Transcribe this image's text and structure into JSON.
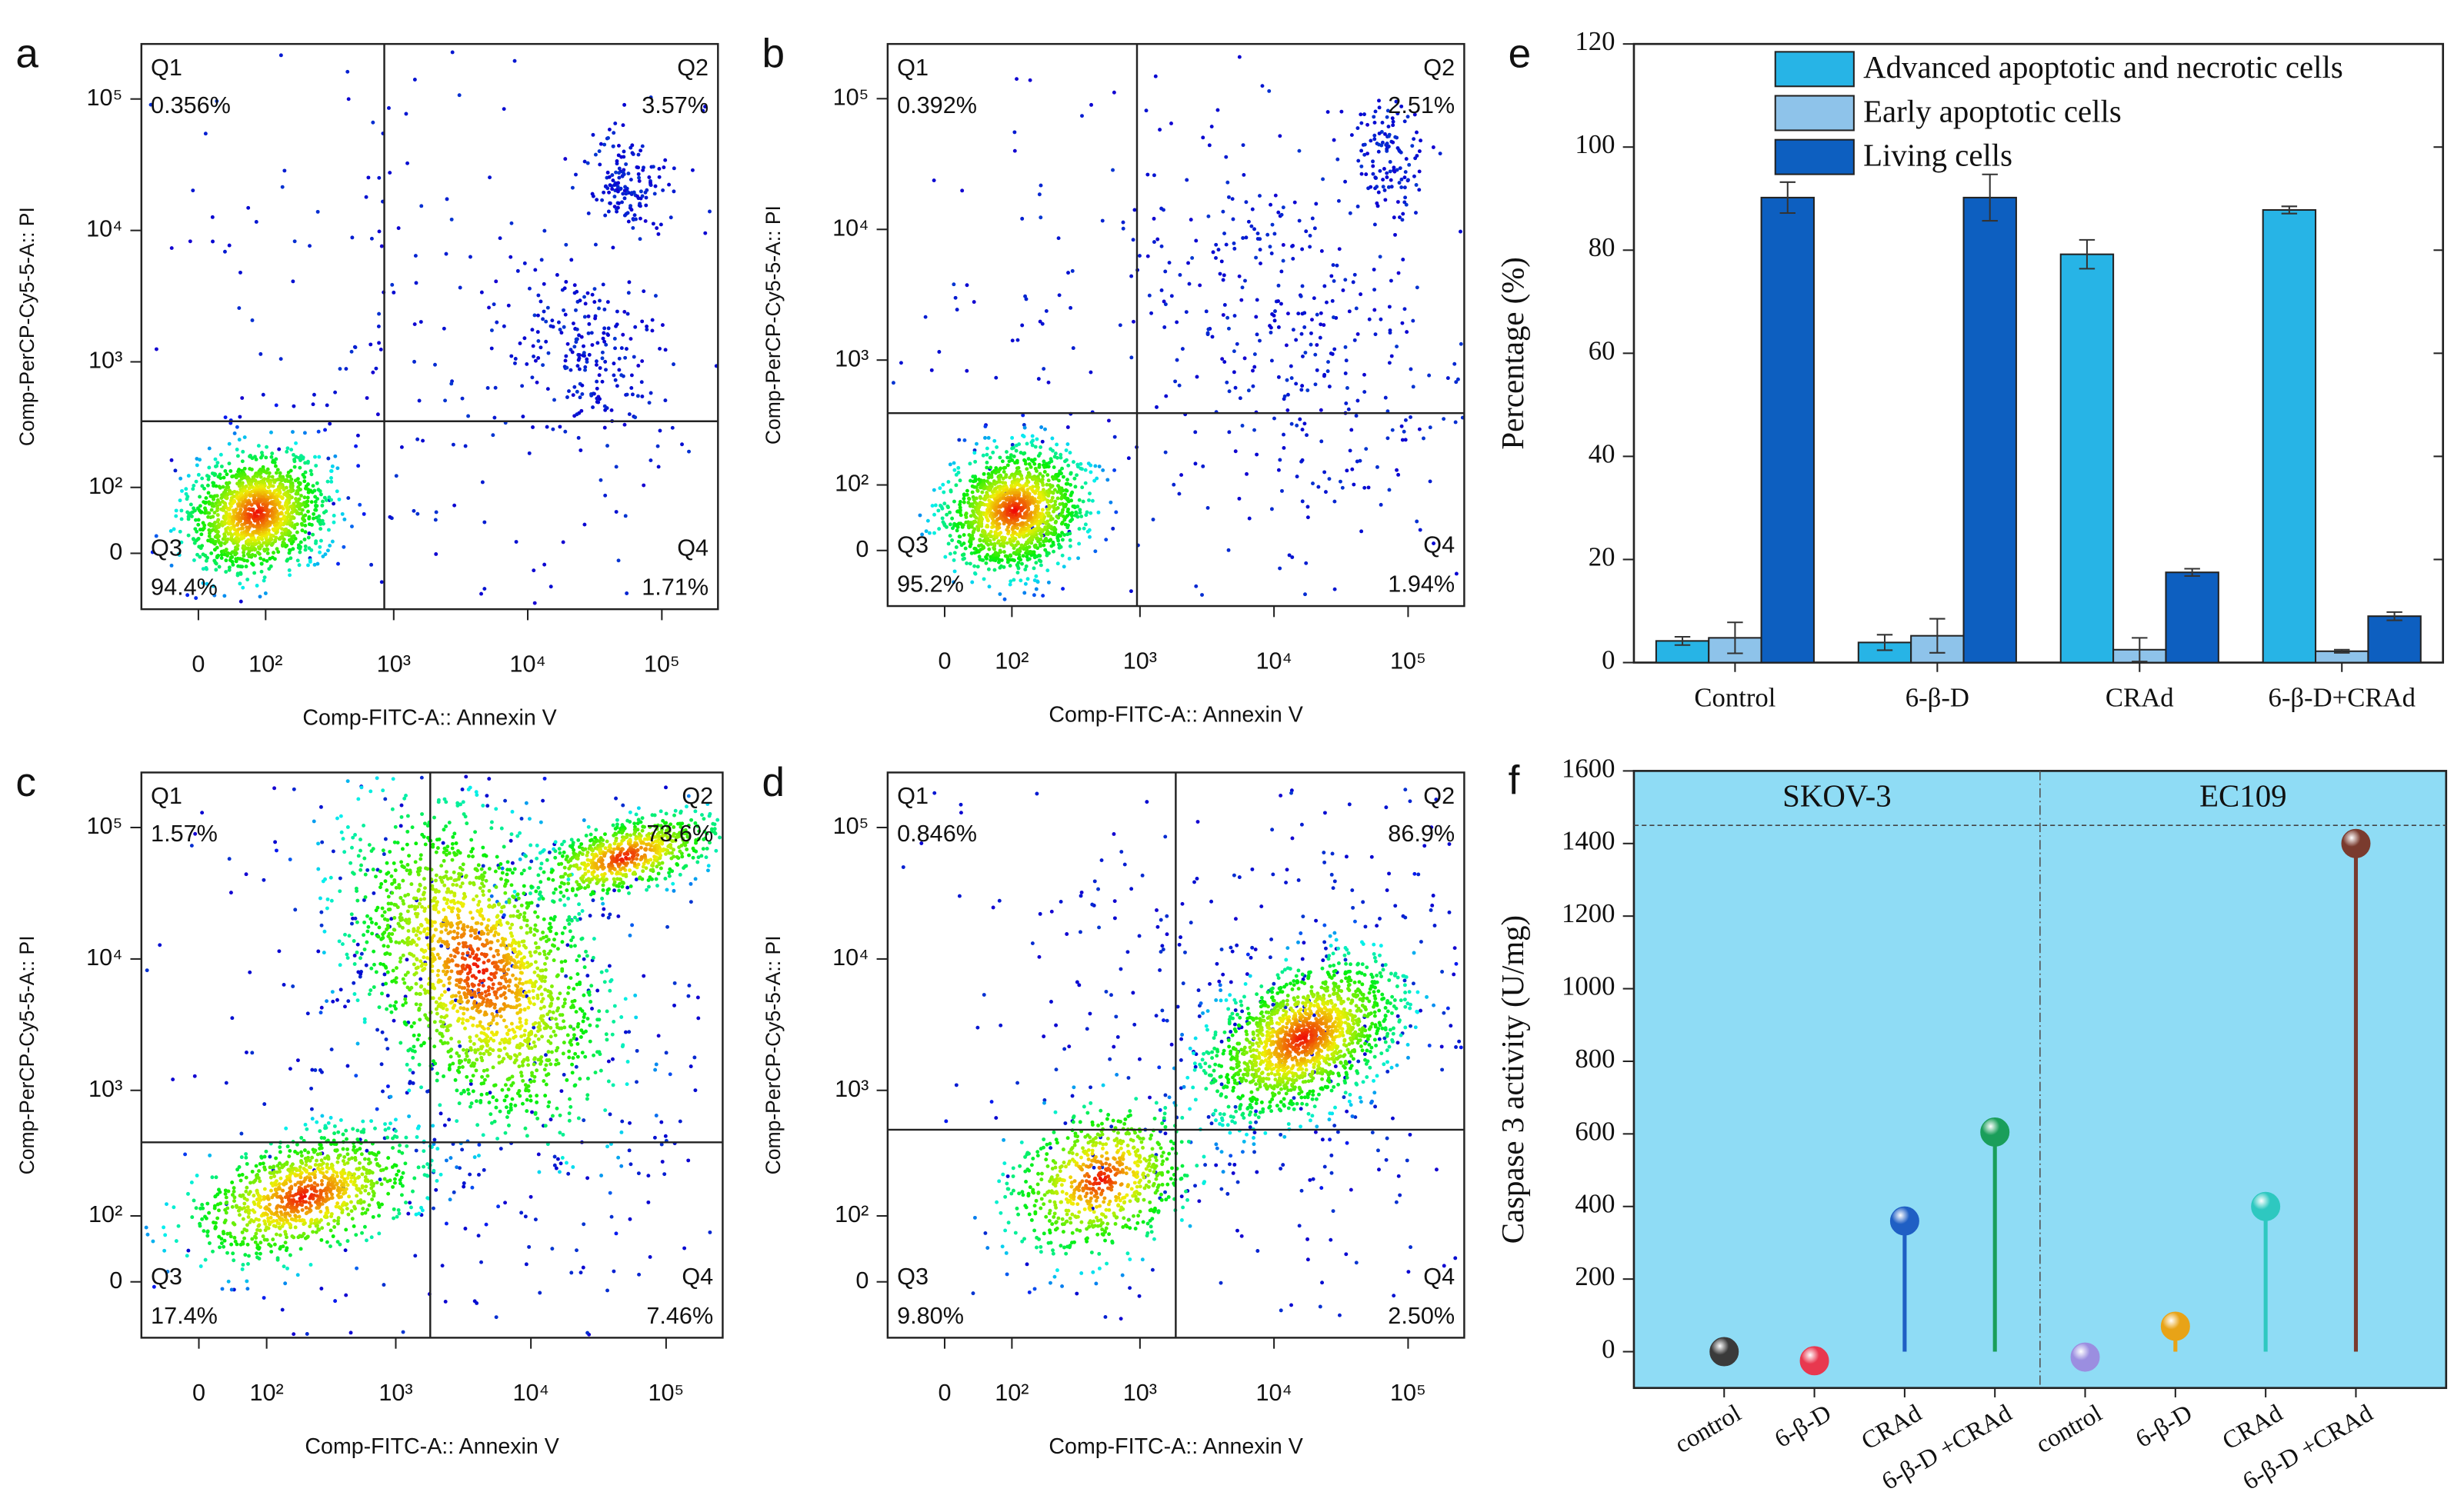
{
  "chart_data": [
    {
      "type": "quadrant",
      "panel": "a",
      "xlabel": "Comp-FITC-A:: Annexin V",
      "ylabel": "Comp-PerCP-Cy5-5-A:: PI",
      "quadrants": [
        "Q1",
        "Q2",
        "Q3",
        "Q4"
      ],
      "values": [
        0.356,
        3.57,
        94.4,
        1.71
      ],
      "value_labels": [
        "0.356%",
        "3.57%",
        "94.4%",
        "1.71%"
      ],
      "gate": {
        "x": 850,
        "y": 350
      },
      "xscale": "logicle",
      "yscale": "logicle",
      "xlim": [
        -80,
        262144
      ],
      "ylim": [
        -80,
        262144
      ],
      "xticks": [
        0,
        {
          "value": 100,
          "label": "10²"
        },
        {
          "value": 1000,
          "label": "10³"
        },
        {
          "value": 10000,
          "label": "10⁴"
        },
        {
          "value": 100000,
          "label": "10⁵"
        }
      ],
      "yticks": [
        0,
        {
          "value": 100,
          "label": "10²"
        },
        {
          "value": 1000,
          "label": "10³"
        },
        {
          "value": 10000,
          "label": "10⁴"
        },
        {
          "value": 100000,
          "label": "10⁵"
        }
      ]
    },
    {
      "type": "quadrant",
      "panel": "b",
      "xlabel": "Comp-FITC-A:: Annexin V",
      "ylabel": "Comp-PerCP-Cy5-5-A:: PI",
      "quadrants": [
        "Q1",
        "Q2",
        "Q3",
        "Q4"
      ],
      "values": [
        0.392,
        2.51,
        95.2,
        1.94
      ],
      "value_labels": [
        "0.392%",
        "2.51%",
        "95.2%",
        "1.94%"
      ],
      "gate": {
        "x": 950,
        "y": 390
      },
      "xscale": "logicle",
      "yscale": "logicle",
      "xlim": [
        -80,
        262144
      ],
      "ylim": [
        -80,
        262144
      ],
      "xticks": [
        0,
        {
          "value": 100,
          "label": "10²"
        },
        {
          "value": 1000,
          "label": "10³"
        },
        {
          "value": 10000,
          "label": "10⁴"
        },
        {
          "value": 100000,
          "label": "10⁵"
        }
      ],
      "yticks": [
        0,
        {
          "value": 100,
          "label": "10²"
        },
        {
          "value": 1000,
          "label": "10³"
        },
        {
          "value": 10000,
          "label": "10⁴"
        },
        {
          "value": 100000,
          "label": "10⁵"
        }
      ]
    },
    {
      "type": "quadrant",
      "panel": "c",
      "xlabel": "Comp-FITC-A:: Annexin V",
      "ylabel": "Comp-PerCP-Cy5-5-A:: PI",
      "quadrants": [
        "Q1",
        "Q2",
        "Q3",
        "Q4"
      ],
      "values": [
        1.57,
        73.6,
        17.4,
        7.46
      ],
      "value_labels": [
        "1.57%",
        "73.6%",
        "17.4%",
        "7.46%"
      ],
      "gate": {
        "x": 1800,
        "y": 400
      },
      "xscale": "logicle",
      "yscale": "logicle",
      "xlim": [
        -80,
        262144
      ],
      "ylim": [
        -80,
        262144
      ],
      "xticks": [
        0,
        {
          "value": 100,
          "label": "10²"
        },
        {
          "value": 1000,
          "label": "10³"
        },
        {
          "value": 10000,
          "label": "10⁴"
        },
        {
          "value": 100000,
          "label": "10⁵"
        }
      ],
      "yticks": [
        0,
        {
          "value": 100,
          "label": "10²"
        },
        {
          "value": 1000,
          "label": "10³"
        },
        {
          "value": 10000,
          "label": "10⁴"
        },
        {
          "value": 100000,
          "label": "10⁵"
        }
      ]
    },
    {
      "type": "quadrant",
      "panel": "d",
      "xlabel": "Comp-FITC-A:: Annexin V",
      "ylabel": "Comp-PerCP-Cy5-5-A:: PI",
      "quadrants": [
        "Q1",
        "Q2",
        "Q3",
        "Q4"
      ],
      "values": [
        0.846,
        86.9,
        9.8,
        2.5
      ],
      "value_labels": [
        "0.846%",
        "86.9%",
        "9.80%",
        "2.50%"
      ],
      "gate": {
        "x": 1850,
        "y": 500
      },
      "xscale": "logicle",
      "yscale": "logicle",
      "xlim": [
        -80,
        262144
      ],
      "ylim": [
        -80,
        262144
      ],
      "xticks": [
        0,
        {
          "value": 100,
          "label": "10²"
        },
        {
          "value": 1000,
          "label": "10³"
        },
        {
          "value": 10000,
          "label": "10⁴"
        },
        {
          "value": 100000,
          "label": "10⁵"
        }
      ],
      "yticks": [
        0,
        {
          "value": 100,
          "label": "10²"
        },
        {
          "value": 1000,
          "label": "10³"
        },
        {
          "value": 10000,
          "label": "10⁴"
        },
        {
          "value": 100000,
          "label": "10⁵"
        }
      ]
    },
    {
      "type": "bar",
      "panel": "e",
      "ylabel": "Percentage (%)",
      "categories": [
        "Control",
        "6-β-D",
        "CRAd",
        "6-β-D+CRAd"
      ],
      "series": [
        {
          "name": "Advanced apoptotic and necrotic cells",
          "color": "#27b4e6",
          "values": [
            4.2,
            3.9,
            79.2,
            87.8
          ],
          "errors": [
            0.8,
            1.5,
            2.8,
            0.7
          ]
        },
        {
          "name": "Early apoptotic cells",
          "color": "#8ec3ea",
          "values": [
            4.8,
            5.2,
            2.5,
            2.2
          ],
          "errors": [
            3.0,
            3.3,
            2.3,
            0.3
          ]
        },
        {
          "name": "Living cells",
          "color": "#0d5fc0",
          "values": [
            90.2,
            90.2,
            17.5,
            9.0
          ],
          "errors": [
            3.0,
            4.5,
            0.7,
            0.8
          ]
        }
      ],
      "ylim": [
        0,
        120
      ],
      "yticks": [
        0,
        20,
        40,
        60,
        80,
        100,
        120
      ],
      "legend": "upper right"
    },
    {
      "type": "lollipop",
      "panel": "f",
      "ylabel": "Caspase 3 activity (U/mg)",
      "groups": [
        "SKOV-3",
        "EC109"
      ],
      "categories": [
        "control",
        "6-β-D",
        "CRAd",
        "6-β-D +CRAd",
        "control",
        "6-β-D",
        "CRAd",
        "6-β-D +CRAd"
      ],
      "values": [
        0,
        -25,
        360,
        605,
        -15,
        70,
        400,
        1400
      ],
      "colors": [
        "#3a3a3a",
        "#e8384f",
        "#1f5fc4",
        "#1a9e5a",
        "#9b8ee0",
        "#e8a317",
        "#2ec8c0",
        "#7a3b2e"
      ],
      "reference_line": 1450,
      "background": "#8fdcf5",
      "ylim": [
        -100,
        1600
      ],
      "yticks": [
        0,
        200,
        400,
        600,
        800,
        1000,
        1200,
        1400,
        1600
      ]
    }
  ]
}
